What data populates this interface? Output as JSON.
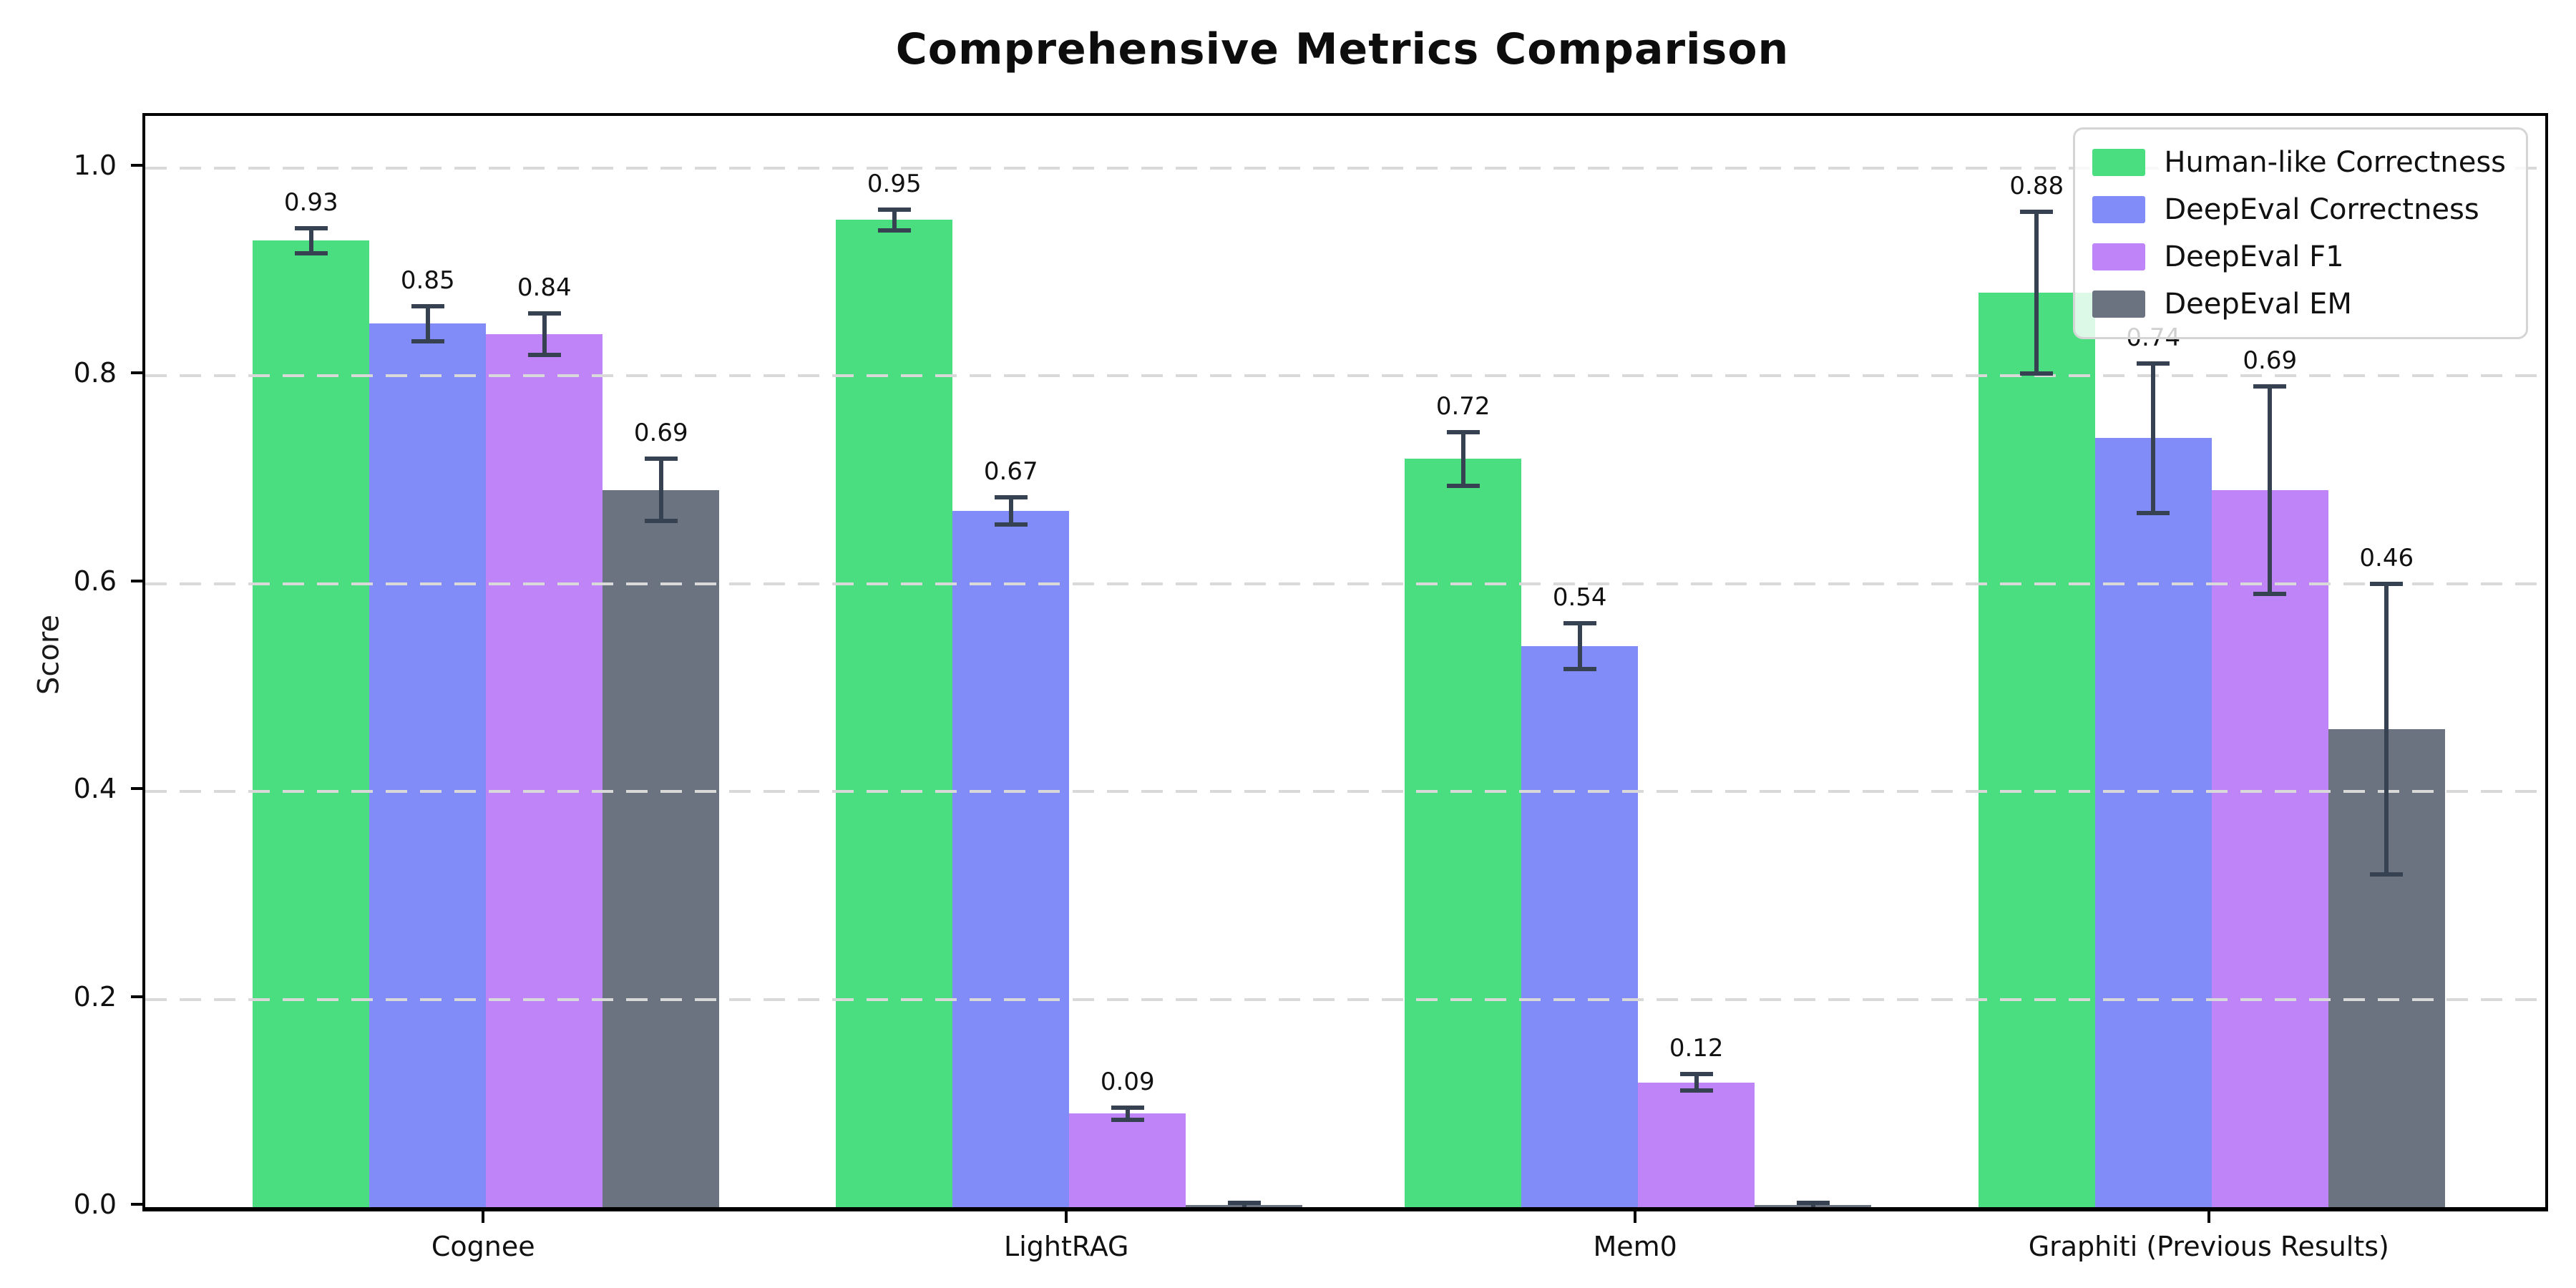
{
  "chart_data": {
    "type": "bar",
    "title": "Comprehensive Metrics Comparison",
    "xlabel": "",
    "ylabel": "Score",
    "categories": [
      "Cognee",
      "LightRAG",
      "Mem0",
      "Graphiti (Previous Results)"
    ],
    "series": [
      {
        "name": "Human-like Correctness",
        "color": "#4ade80",
        "values": [
          0.93,
          0.95,
          0.72,
          0.88
        ],
        "errors": [
          0.012,
          0.01,
          0.026,
          0.078
        ],
        "labels": [
          "0.93",
          "0.95",
          "0.72",
          "0.88"
        ]
      },
      {
        "name": "DeepEval Correctness",
        "color": "#818cf8",
        "values": [
          0.85,
          0.67,
          0.54,
          0.74
        ],
        "errors": [
          0.017,
          0.013,
          0.022,
          0.072
        ],
        "labels": [
          "0.85",
          "0.67",
          "0.54",
          "0.74"
        ]
      },
      {
        "name": "DeepEval F1",
        "color": "#bf85f8",
        "values": [
          0.84,
          0.09,
          0.12,
          0.69
        ],
        "errors": [
          0.02,
          0.006,
          0.008,
          0.1
        ],
        "labels": [
          "0.84",
          "0.09",
          "0.12",
          "0.69"
        ]
      },
      {
        "name": "DeepEval EM",
        "color": "#6b7280",
        "values": [
          0.69,
          0.0,
          0.0,
          0.46
        ],
        "errors": [
          0.03,
          0.004,
          0.004,
          0.14
        ],
        "labels": [
          "0.69",
          null,
          null,
          "0.46"
        ]
      }
    ],
    "ylim": [
      0,
      1.05
    ],
    "yticks": [
      0.0,
      0.2,
      0.4,
      0.6,
      0.8,
      1.0
    ],
    "yticklabels": [
      "0.0",
      "0.2",
      "0.4",
      "0.6",
      "0.8",
      "1.0"
    ],
    "grid": "horizontal dashed, drawn above bars",
    "legend_position": "upper right",
    "style": {
      "grid_color": "#d9d9d9",
      "errorbar_color": "#364152",
      "spine_color": "#000000",
      "background_color": "#ffffff"
    }
  }
}
